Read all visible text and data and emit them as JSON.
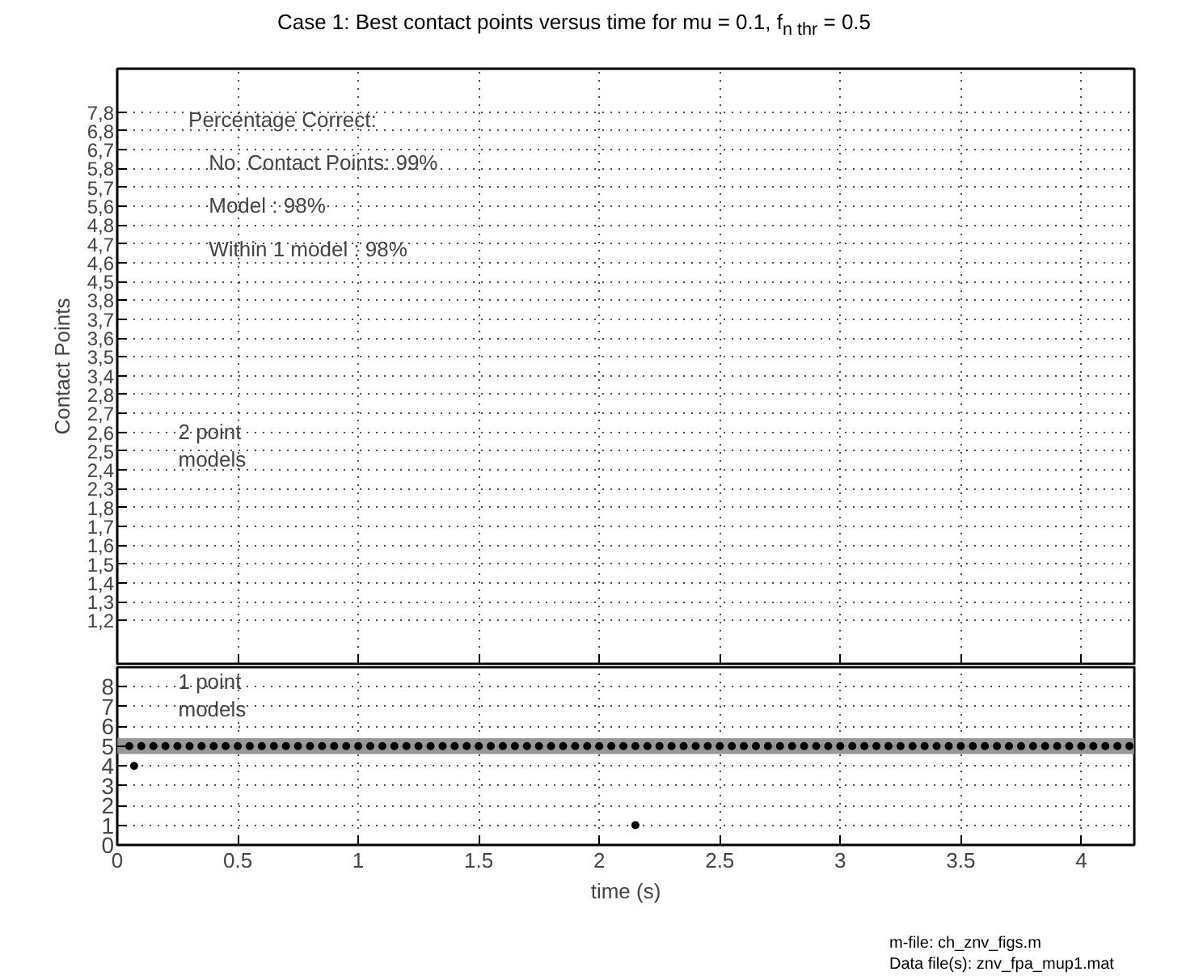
{
  "chart_data": [
    {
      "type": "other",
      "title": "Case 1: Best contact points versus time for mu = 0.1, f$_{n thr}$ = 0.5",
      "ylabel": "Contact Points",
      "y_categories": [
        "7,8",
        "6,8",
        "6,7",
        "5,8",
        "5,7",
        "5,6",
        "4,8",
        "4,7",
        "4,6",
        "4,5",
        "3,8",
        "3,7",
        "3,6",
        "3,5",
        "3,4",
        "2,8",
        "2,7",
        "2,6",
        "2,5",
        "2,4",
        "2,3",
        "1,8",
        "1,7",
        "1,6",
        "1,5",
        "1,4",
        "1,3",
        "1,2"
      ],
      "annotations": [
        "Percentage Correct:",
        "No. Contact Points: 99%",
        "Model : 98%",
        "Within 1 model : 98%",
        "2 point models"
      ]
    },
    {
      "type": "scatter",
      "xlabel": "time (s)",
      "xlim": [
        0,
        4.22
      ],
      "xticks": [
        0,
        0.5,
        1,
        1.5,
        2,
        2.5,
        3,
        3.5,
        4
      ],
      "ylim": [
        0,
        9
      ],
      "yticks": [
        0,
        1,
        2,
        3,
        4,
        5,
        6,
        7,
        8
      ],
      "grid": true,
      "marker": "circle",
      "series": [
        {
          "color": "#000000",
          "x": [
            0.05,
            0.1,
            0.15,
            0.2,
            0.25,
            0.3,
            0.35,
            0.4,
            0.45,
            0.5,
            0.55,
            0.6,
            0.65,
            0.7,
            0.75,
            0.8,
            0.85,
            0.9,
            0.95,
            1.0,
            1.05,
            1.1,
            1.15,
            1.2,
            1.25,
            1.3,
            1.35,
            1.4,
            1.45,
            1.5,
            1.55,
            1.6,
            1.65,
            1.7,
            1.75,
            1.8,
            1.85,
            1.9,
            1.95,
            2.0,
            2.05,
            2.1,
            2.15,
            2.2,
            2.25,
            2.3,
            2.35,
            2.4,
            2.45,
            2.5,
            2.55,
            2.6,
            2.65,
            2.7,
            2.75,
            2.8,
            2.85,
            2.9,
            2.95,
            3.0,
            3.05,
            3.1,
            3.15,
            3.2,
            3.25,
            3.3,
            3.35,
            3.4,
            3.45,
            3.5,
            3.55,
            3.6,
            3.65,
            3.7,
            3.75,
            3.8,
            3.85,
            3.9,
            3.95,
            4.0,
            4.05,
            4.1,
            4.15,
            4.2,
            0.07,
            2.15
          ],
          "values": [
            5,
            5,
            5,
            5,
            5,
            5,
            5,
            5,
            5,
            5,
            5,
            5,
            5,
            5,
            5,
            5,
            5,
            5,
            5,
            5,
            5,
            5,
            5,
            5,
            5,
            5,
            5,
            5,
            5,
            5,
            5,
            5,
            5,
            5,
            5,
            5,
            5,
            5,
            5,
            5,
            5,
            5,
            5,
            5,
            5,
            5,
            5,
            5,
            5,
            5,
            5,
            5,
            5,
            5,
            5,
            5,
            5,
            5,
            5,
            5,
            5,
            5,
            5,
            5,
            5,
            5,
            5,
            5,
            5,
            5,
            5,
            5,
            5,
            5,
            5,
            5,
            5,
            5,
            5,
            5,
            5,
            5,
            5,
            5,
            4,
            1
          ]
        }
      ],
      "bands": [
        {
          "axis": "y",
          "from": 4.6,
          "to": 5.4,
          "color": "#8c8c8c"
        }
      ],
      "annotations": [
        "1 point models",
        "m-file: ch_znv_figs.m",
        "Data file(s): znv_fpa_mup1.mat"
      ]
    }
  ]
}
